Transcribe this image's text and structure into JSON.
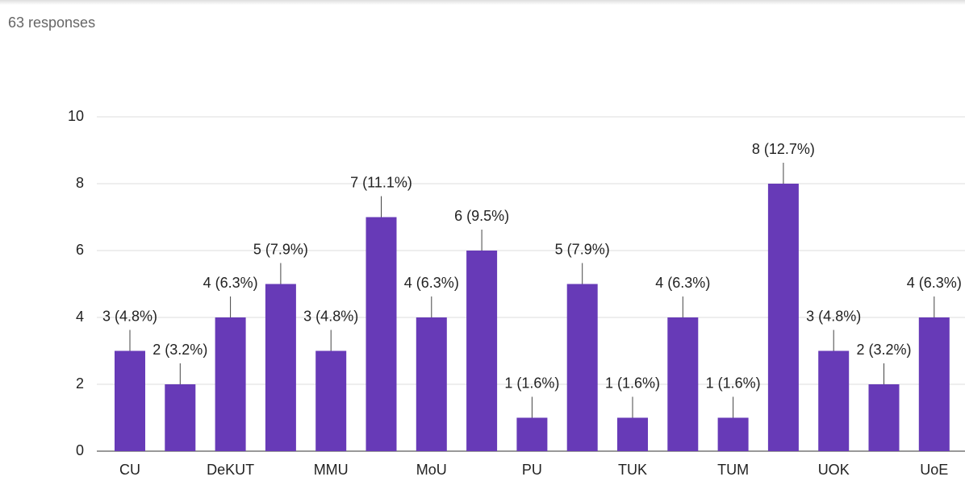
{
  "header": {
    "responses": "63 responses"
  },
  "chart_data": {
    "type": "bar",
    "categories": [
      "CU",
      null,
      "DeKUT",
      null,
      "MMU",
      null,
      "MoU",
      null,
      "PU",
      null,
      "TUK",
      null,
      "TUM",
      null,
      "UOK",
      null,
      "UoE"
    ],
    "values": [
      3,
      2,
      4,
      5,
      3,
      7,
      4,
      6,
      1,
      5,
      1,
      4,
      1,
      8,
      3,
      2,
      4
    ],
    "value_labels": [
      "3 (4.8%)",
      "2 (3.2%)",
      "4 (6.3%)",
      "5 (7.9%)",
      "3 (4.8%)",
      "7 (11.1%)",
      "4 (6.3%)",
      "6 (9.5%)",
      "1 (1.6%)",
      "5 (7.9%)",
      "1 (1.6%)",
      "4 (6.3%)",
      "1 (1.6%)",
      "8 (12.7%)",
      "3 (4.8%)",
      "2 (3.2%)",
      "4 (6.3%)"
    ],
    "color": "#673ab7",
    "ylim": [
      0,
      10
    ],
    "yticks": [
      0,
      2,
      4,
      6,
      8,
      10
    ],
    "grid": true
  }
}
